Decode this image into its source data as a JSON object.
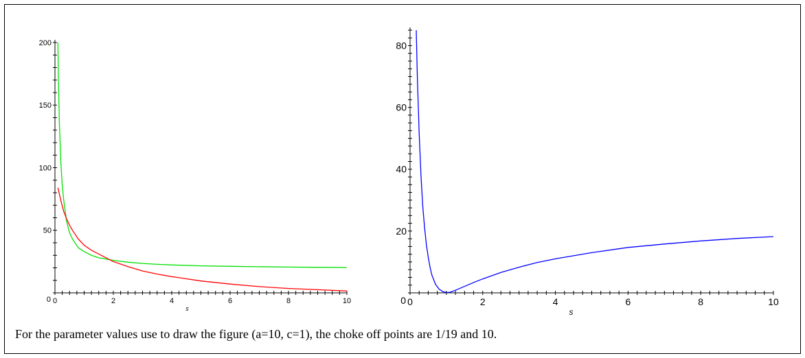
{
  "caption": "For the parameter values use to draw the figure (a=10, c=1), the choke off points are 1/19 and 10.",
  "chart_data": [
    {
      "type": "line",
      "xlabel": "s",
      "ylabel": "",
      "xlim": [
        0,
        10
      ],
      "ylim": [
        0,
        200
      ],
      "xticks": [
        0,
        2,
        4,
        6,
        8,
        10
      ],
      "yticks": [
        50,
        100,
        150,
        200
      ],
      "x_minor_step": 0.25,
      "y_minor_step": 10,
      "grid": false,
      "series": [
        {
          "color": "#00e000",
          "x": [
            0.1,
            0.12,
            0.15,
            0.2,
            0.25,
            0.3,
            0.4,
            0.5,
            0.6,
            0.8,
            1,
            1.25,
            1.5,
            2,
            2.5,
            3,
            3.5,
            4,
            5,
            6,
            7,
            8,
            9,
            10
          ],
          "y": [
            200,
            169,
            137,
            105,
            86,
            74,
            57,
            48,
            43,
            36,
            33,
            30,
            28,
            26,
            24.5,
            23.5,
            22.8,
            22.3,
            21.6,
            21.2,
            20.9,
            20.6,
            20.4,
            20.2
          ]
        },
        {
          "color": "#ff0000",
          "x": [
            0.1,
            0.2,
            0.3,
            0.4,
            0.5,
            0.6,
            0.8,
            1,
            1.25,
            1.5,
            2,
            2.5,
            3,
            3.5,
            4,
            5,
            6,
            7,
            8,
            9,
            10
          ],
          "y": [
            84,
            74,
            65,
            59,
            54,
            50,
            43,
            38,
            34,
            31,
            25,
            21,
            17.5,
            15,
            13,
            9.5,
            7,
            5,
            3.5,
            2.5,
            1.5
          ]
        }
      ]
    },
    {
      "type": "line",
      "xlabel": "s",
      "ylabel": "",
      "xlim": [
        0,
        10
      ],
      "ylim": [
        0,
        85
      ],
      "xticks": [
        0,
        2,
        4,
        6,
        8,
        10
      ],
      "yticks": [
        20,
        40,
        60,
        80
      ],
      "x_minor_step": 0.25,
      "y_minor_step": 2.5,
      "grid": false,
      "series": [
        {
          "color": "#0000ff",
          "x": [
            0.17,
            0.2,
            0.25,
            0.3,
            0.35,
            0.4,
            0.45,
            0.5,
            0.55,
            0.6,
            0.7,
            0.8,
            0.9,
            1.0,
            1.1,
            1.2,
            1.4,
            1.6,
            1.8,
            2.0,
            2.5,
            3,
            3.5,
            4,
            5,
            6,
            7,
            8,
            9,
            10
          ],
          "y": [
            85,
            70,
            52,
            38,
            28,
            21,
            15.5,
            11.5,
            8.3,
            5.8,
            2.8,
            1.2,
            0.4,
            0.1,
            0.2,
            0.6,
            1.6,
            2.6,
            3.6,
            4.5,
            6.6,
            8.3,
            9.8,
            11,
            13,
            14.7,
            15.8,
            16.8,
            17.6,
            18.2
          ]
        }
      ]
    }
  ]
}
